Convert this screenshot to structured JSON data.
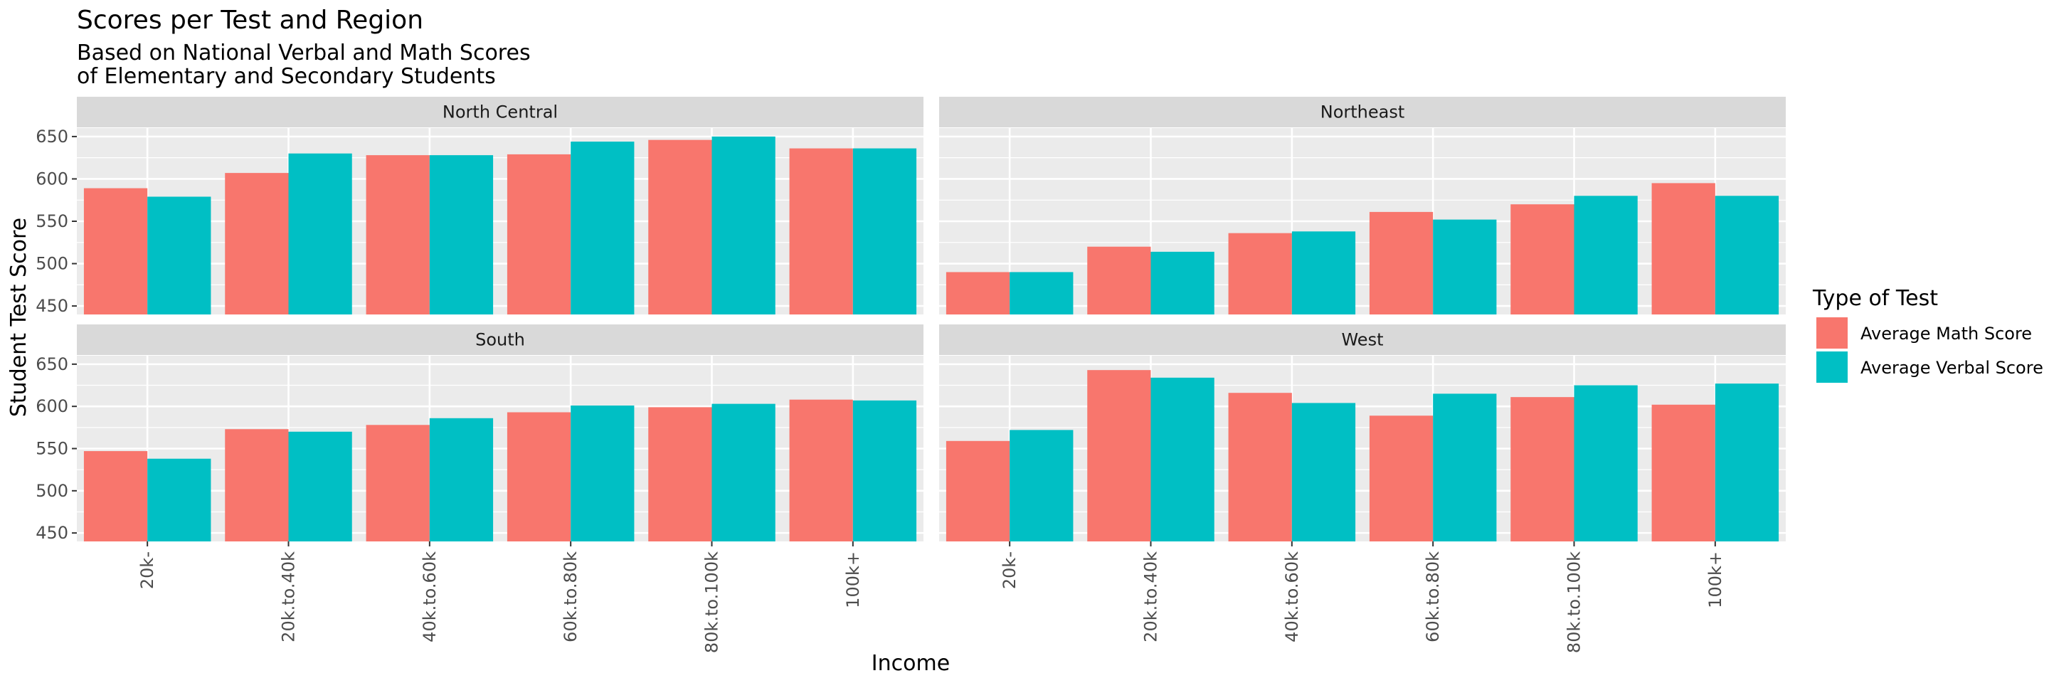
{
  "chart_data": {
    "type": "bar",
    "title": "Scores per Test and Region",
    "subtitle": [
      "Based on National Verbal and Math Scores",
      "of Elementary and Secondary Students"
    ],
    "xlabel": "Income",
    "ylabel": "Student Test Score",
    "categories": [
      "20k-",
      "20k.to.40k",
      "40k.to.60k",
      "60k.to.80k",
      "80k.to.100k",
      "100k+"
    ],
    "y_ticks": [
      450,
      500,
      550,
      600,
      650
    ],
    "ylim": [
      440,
      660
    ],
    "grid": true,
    "legend": {
      "title": "Type of Test",
      "position": "right",
      "entries": [
        {
          "name": "Average Math Score",
          "color": "#F8766D"
        },
        {
          "name": "Average Verbal Score",
          "color": "#00BFC4"
        }
      ]
    },
    "facets": [
      {
        "name": "North Central",
        "series": [
          {
            "name": "Average Math Score",
            "values": [
              589,
              607,
              628,
              629,
              646,
              636
            ]
          },
          {
            "name": "Average Verbal Score",
            "values": [
              579,
              630,
              628,
              644,
              650,
              636
            ]
          }
        ]
      },
      {
        "name": "Northeast",
        "series": [
          {
            "name": "Average Math Score",
            "values": [
              490,
              520,
              536,
              561,
              570,
              595
            ]
          },
          {
            "name": "Average Verbal Score",
            "values": [
              490,
              514,
              538,
              552,
              580,
              580
            ]
          }
        ]
      },
      {
        "name": "South",
        "series": [
          {
            "name": "Average Math Score",
            "values": [
              547,
              573,
              578,
              593,
              599,
              608
            ]
          },
          {
            "name": "Average Verbal Score",
            "values": [
              538,
              570,
              586,
              601,
              603,
              607
            ]
          }
        ]
      },
      {
        "name": "West",
        "series": [
          {
            "name": "Average Math Score",
            "values": [
              559,
              643,
              616,
              589,
              611,
              602
            ]
          },
          {
            "name": "Average Verbal Score",
            "values": [
              572,
              634,
              604,
              615,
              625,
              627
            ]
          }
        ]
      }
    ]
  }
}
